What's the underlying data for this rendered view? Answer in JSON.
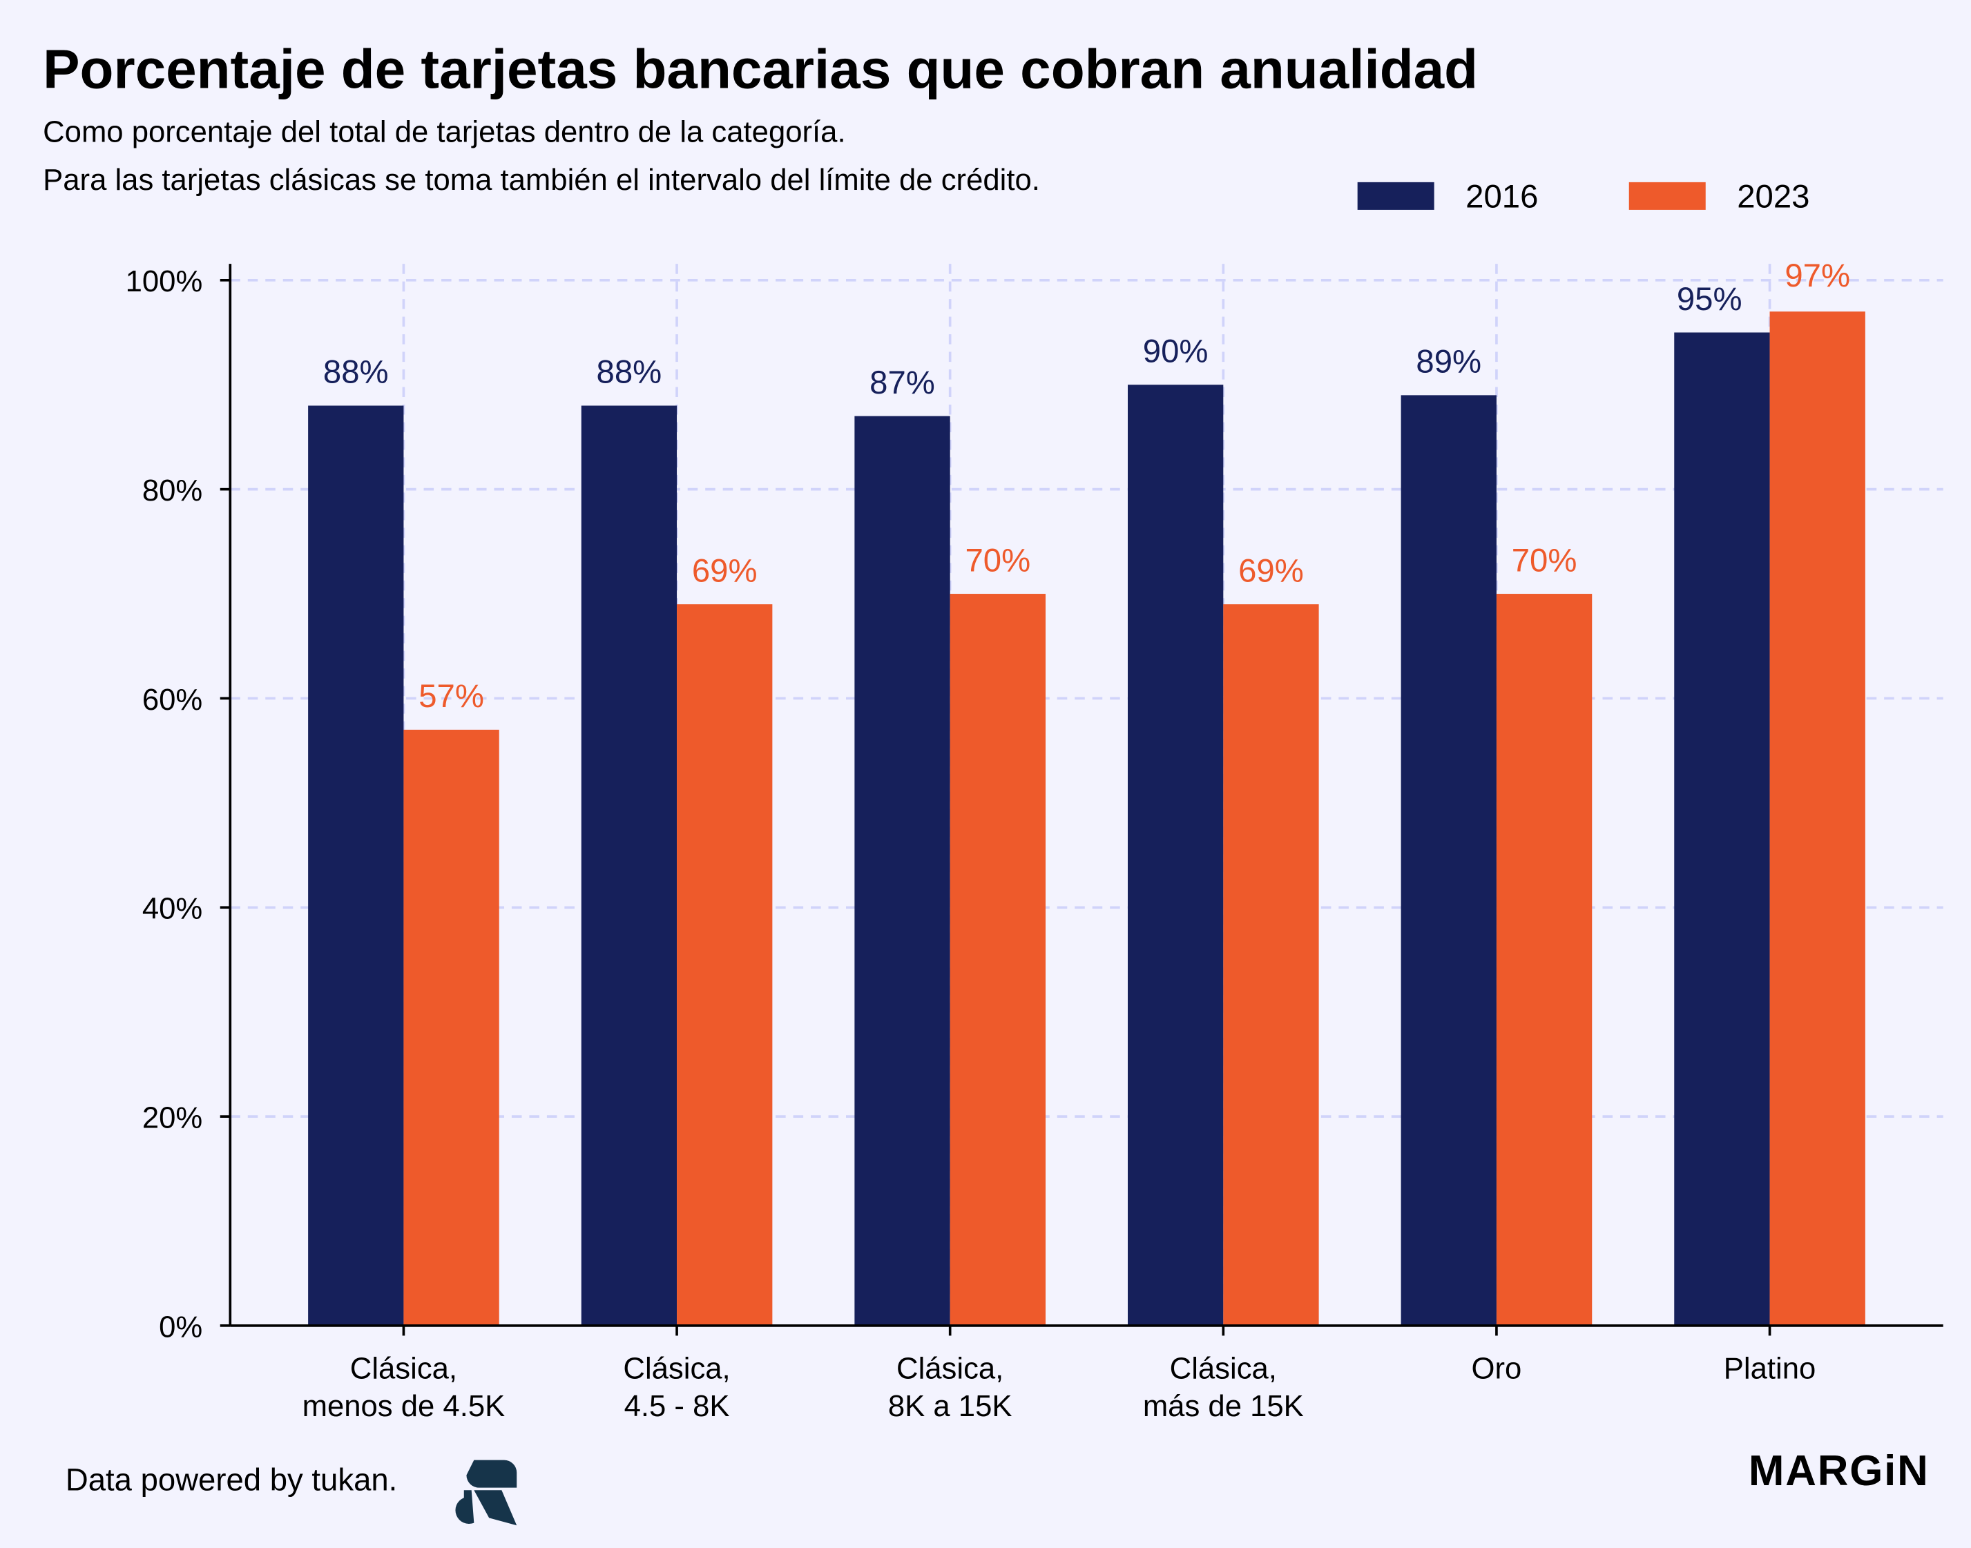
{
  "colors": {
    "s2016": "#16205b",
    "s2023": "#ee5a2b",
    "grid": "#d0d3fa",
    "bg": "#f3f3fe"
  },
  "footer": {
    "credit": "Data powered by tukan.",
    "brand": "MARGiN",
    "tukan_logo": "tukan-logo-icon"
  },
  "chart_data": {
    "type": "bar",
    "title": "Porcentaje de tarjetas bancarias que cobran anualidad",
    "subtitle": [
      "Como porcentaje del total de tarjetas dentro de la categoría.",
      "Para las tarjetas clásicas se toma también el intervalo del límite de crédito."
    ],
    "categories": [
      [
        "Clásica,",
        "menos de 4.5K"
      ],
      [
        "Clásica,",
        "4.5 - 8K"
      ],
      [
        "Clásica,",
        "8K a 15K"
      ],
      [
        "Clásica,",
        "más de 15K"
      ],
      [
        "Oro",
        ""
      ],
      [
        "Platino",
        ""
      ]
    ],
    "series": [
      {
        "name": "2016",
        "values": [
          88,
          88,
          87,
          90,
          89,
          95
        ],
        "labels": [
          "88%",
          "88%",
          "87%",
          "90%",
          "89%",
          "95%"
        ]
      },
      {
        "name": "2023",
        "values": [
          57,
          69,
          70,
          69,
          70,
          97
        ],
        "labels": [
          "57%",
          "69%",
          "70%",
          "69%",
          "70%",
          "97%"
        ]
      }
    ],
    "yticks": [
      0,
      20,
      40,
      60,
      80,
      100
    ],
    "ytick_labels": [
      "0%",
      "20%",
      "40%",
      "60%",
      "80%",
      "100%"
    ],
    "ylim": [
      0,
      100
    ],
    "xlabel": "",
    "ylabel": "",
    "grid": true,
    "legend": "top-right"
  }
}
